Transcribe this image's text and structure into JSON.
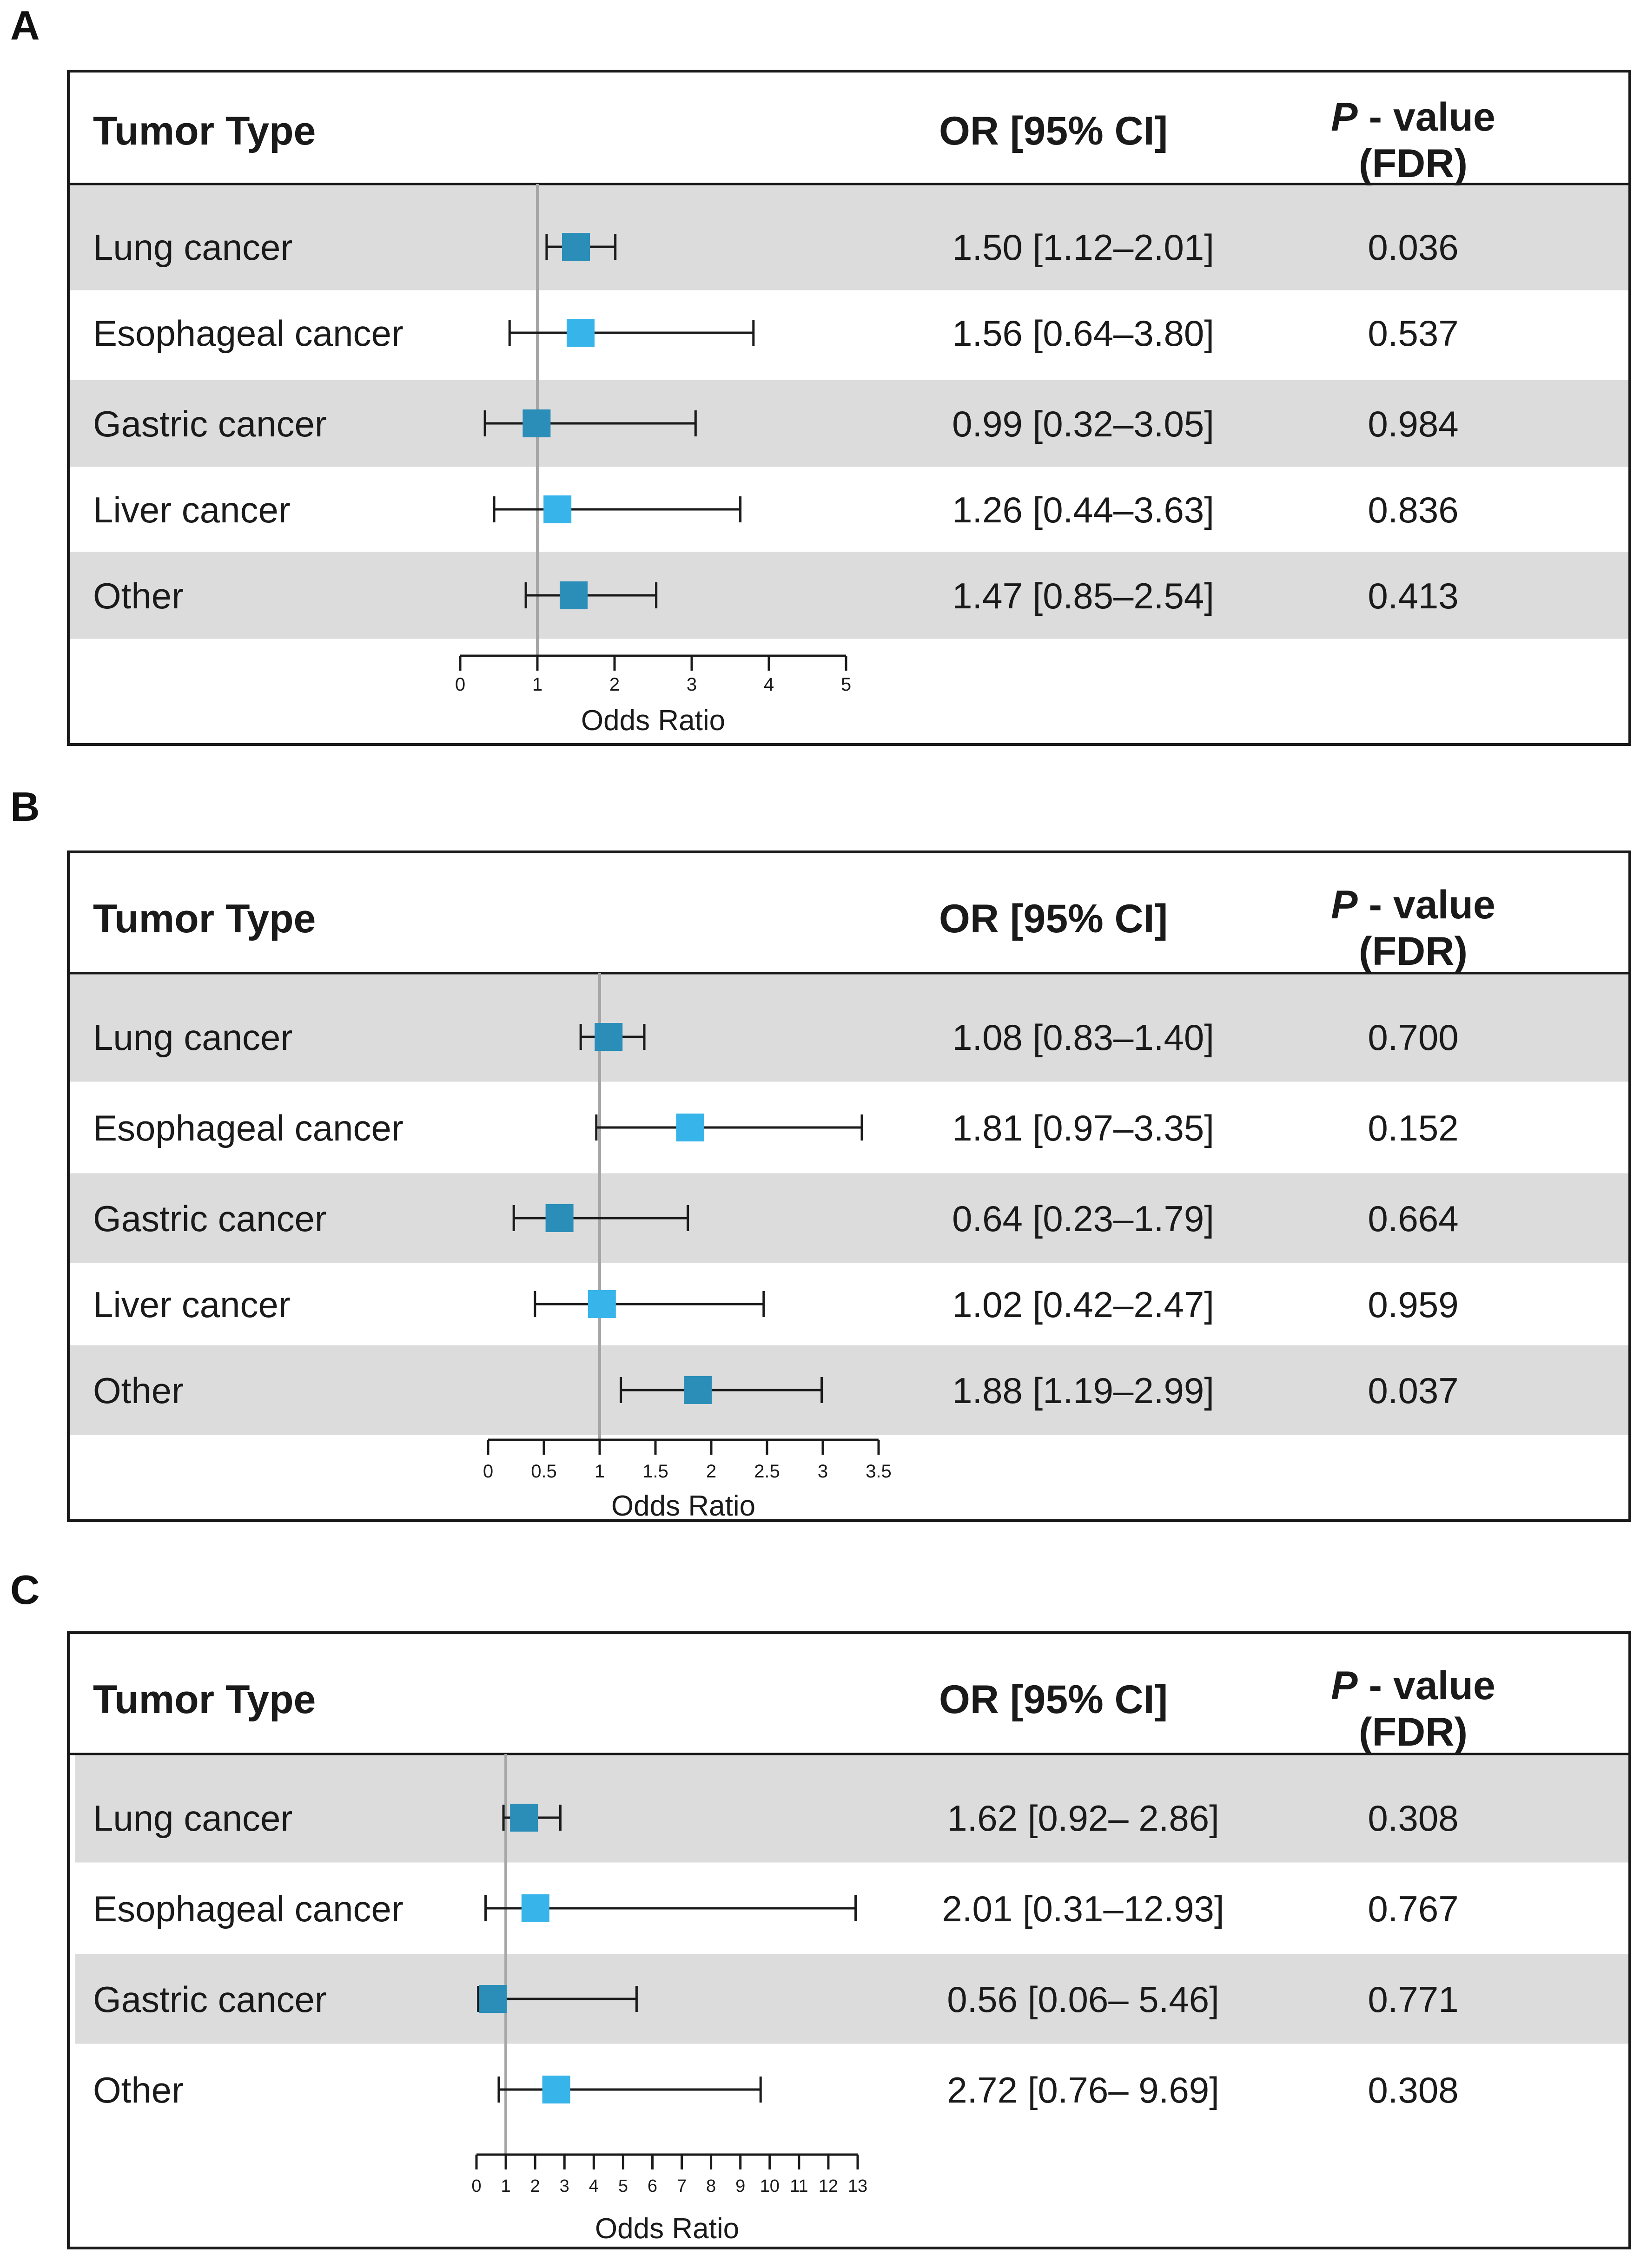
{
  "chart_data": [
    {
      "type": "forest",
      "panel": "A",
      "columns": {
        "tumor": "Tumor Type",
        "or": "OR [95% CI]",
        "p_italic": "P",
        "p_rest": " - value",
        "p_line2": "(FDR)"
      },
      "rows": [
        {
          "label": "Lung cancer",
          "or": 1.5,
          "lo": 1.12,
          "hi": 2.01,
          "or_text": "1.50 [1.12–2.01]",
          "p_text": "0.036"
        },
        {
          "label": "Esophageal cancer",
          "or": 1.56,
          "lo": 0.64,
          "hi": 3.8,
          "or_text": "1.56 [0.64–3.80]",
          "p_text": "0.537"
        },
        {
          "label": "Gastric cancer",
          "or": 0.99,
          "lo": 0.32,
          "hi": 3.05,
          "or_text": "0.99 [0.32–3.05]",
          "p_text": "0.984"
        },
        {
          "label": "Liver cancer",
          "or": 1.26,
          "lo": 0.44,
          "hi": 3.63,
          "or_text": "1.26 [0.44–3.63]",
          "p_text": "0.836"
        },
        {
          "label": "Other",
          "or": 1.47,
          "lo": 0.85,
          "hi": 2.54,
          "or_text": "1.47 [0.85–2.54]",
          "p_text": "0.413"
        }
      ],
      "xaxis": {
        "label": "Odds Ratio",
        "min": 0,
        "max": 5,
        "ticks": [
          "0",
          "1",
          "2",
          "3",
          "4",
          "5"
        ],
        "ref": 1
      }
    },
    {
      "type": "forest",
      "panel": "B",
      "columns": {
        "tumor": "Tumor Type",
        "or": "OR [95% CI]",
        "p_italic": "P",
        "p_rest": " - value",
        "p_line2": "(FDR)"
      },
      "rows": [
        {
          "label": "Lung cancer",
          "or": 1.08,
          "lo": 0.83,
          "hi": 1.4,
          "or_text": "1.08 [0.83–1.40]",
          "p_text": "0.700"
        },
        {
          "label": "Esophageal cancer",
          "or": 1.81,
          "lo": 0.97,
          "hi": 3.35,
          "or_text": "1.81 [0.97–3.35]",
          "p_text": "0.152"
        },
        {
          "label": "Gastric cancer",
          "or": 0.64,
          "lo": 0.23,
          "hi": 1.79,
          "or_text": "0.64 [0.23–1.79]",
          "p_text": "0.664"
        },
        {
          "label": "Liver cancer",
          "or": 1.02,
          "lo": 0.42,
          "hi": 2.47,
          "or_text": "1.02 [0.42–2.47]",
          "p_text": "0.959"
        },
        {
          "label": "Other",
          "or": 1.88,
          "lo": 1.19,
          "hi": 2.99,
          "or_text": "1.88 [1.19–2.99]",
          "p_text": "0.037"
        }
      ],
      "xaxis": {
        "label": "Odds Ratio",
        "min": 0,
        "max": 3.5,
        "ticks": [
          "0",
          "0.5",
          "1",
          "1.5",
          "2",
          "2.5",
          "3",
          "3.5"
        ],
        "ref": 1
      }
    },
    {
      "type": "forest",
      "panel": "C",
      "columns": {
        "tumor": "Tumor Type",
        "or": "OR [95% CI]",
        "p_italic": "P",
        "p_rest": " - value",
        "p_line2": "(FDR)"
      },
      "rows": [
        {
          "label": "Lung cancer",
          "or": 1.62,
          "lo": 0.92,
          "hi": 2.86,
          "or_text": "1.62 [0.92– 2.86]",
          "p_text": "0.308"
        },
        {
          "label": "Esophageal cancer",
          "or": 2.01,
          "lo": 0.31,
          "hi": 12.93,
          "or_text": "2.01 [0.31–12.93]",
          "p_text": "0.767"
        },
        {
          "label": "Gastric cancer",
          "or": 0.56,
          "lo": 0.06,
          "hi": 5.46,
          "or_text": "0.56 [0.06– 5.46]",
          "p_text": "0.771"
        },
        {
          "label": "Other",
          "or": 2.72,
          "lo": 0.76,
          "hi": 9.69,
          "or_text": "2.72 [0.76– 9.69]",
          "p_text": "0.308"
        }
      ],
      "xaxis": {
        "label": "Odds Ratio",
        "min": 0,
        "max": 13,
        "ticks": [
          "0",
          "1",
          "2",
          "3",
          "4",
          "5",
          "6",
          "7",
          "8",
          "9",
          "10",
          "11",
          "12",
          "13"
        ],
        "ref": 1
      }
    }
  ],
  "colors": {
    "shade": "#dcdcdc",
    "marker_dark": "#2a8eb8",
    "marker_light": "#37b4ea",
    "ref_line": "#a6a6a6",
    "ink": "#1a1a1a"
  }
}
